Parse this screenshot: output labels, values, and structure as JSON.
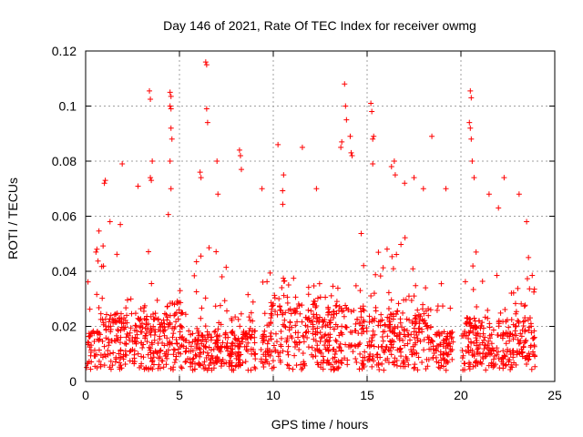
{
  "chart_data": {
    "type": "scatter",
    "title": "Day 146 of 2021, Rate Of TEC Index for receiver owmg",
    "xlabel": "GPS time / hours",
    "ylabel": "ROTI / TECUs",
    "xlim": [
      0,
      25
    ],
    "ylim": [
      0,
      0.12
    ],
    "x_ticks": [
      0,
      5,
      10,
      15,
      20,
      25
    ],
    "y_ticks": [
      0,
      0.02,
      0.04,
      0.06,
      0.08,
      0.1,
      0.12
    ],
    "x_tick_labels": [
      "0",
      "5",
      "10",
      "15",
      "20",
      "25"
    ],
    "y_tick_labels": [
      "0",
      "0.02",
      "0.04",
      "0.06",
      "0.08",
      "0.1",
      "0.12"
    ],
    "grid": true,
    "marker": "+",
    "series_color": "#ff0000",
    "gaps_hours": [
      [
        9.05,
        9.35
      ],
      [
        19.6,
        20.05
      ]
    ],
    "notable_points": [
      [
        0.55,
        0.047
      ],
      [
        0.6,
        0.048
      ],
      [
        1.0,
        0.072
      ],
      [
        1.05,
        0.073
      ],
      [
        1.3,
        0.058
      ],
      [
        1.85,
        0.057
      ],
      [
        1.95,
        0.079
      ],
      [
        3.4,
        0.1055
      ],
      [
        3.45,
        0.1025
      ],
      [
        3.45,
        0.074
      ],
      [
        3.5,
        0.073
      ],
      [
        3.55,
        0.08
      ],
      [
        4.5,
        0.105
      ],
      [
        4.55,
        0.1035
      ],
      [
        4.5,
        0.1
      ],
      [
        4.55,
        0.099
      ],
      [
        4.55,
        0.092
      ],
      [
        4.6,
        0.088
      ],
      [
        4.5,
        0.08
      ],
      [
        4.55,
        0.07
      ],
      [
        6.4,
        0.116
      ],
      [
        6.45,
        0.115
      ],
      [
        6.45,
        0.099
      ],
      [
        6.5,
        0.094
      ],
      [
        6.1,
        0.076
      ],
      [
        6.15,
        0.074
      ],
      [
        7.0,
        0.08
      ],
      [
        7.05,
        0.068
      ],
      [
        8.2,
        0.084
      ],
      [
        8.25,
        0.082
      ],
      [
        8.3,
        0.077
      ],
      [
        9.4,
        0.07
      ],
      [
        10.25,
        0.086
      ],
      [
        10.55,
        0.075
      ],
      [
        11.55,
        0.085
      ],
      [
        12.3,
        0.07
      ],
      [
        13.6,
        0.085
      ],
      [
        13.65,
        0.087
      ],
      [
        13.8,
        0.108
      ],
      [
        13.85,
        0.1
      ],
      [
        13.9,
        0.095
      ],
      [
        14.1,
        0.089
      ],
      [
        14.15,
        0.083
      ],
      [
        14.2,
        0.082
      ],
      [
        15.2,
        0.101
      ],
      [
        15.25,
        0.098
      ],
      [
        15.3,
        0.088
      ],
      [
        15.35,
        0.089
      ],
      [
        15.3,
        0.079
      ],
      [
        16.3,
        0.078
      ],
      [
        16.45,
        0.08
      ],
      [
        16.5,
        0.075
      ],
      [
        17.0,
        0.072
      ],
      [
        17.5,
        0.074
      ],
      [
        18.0,
        0.07
      ],
      [
        18.45,
        0.089
      ],
      [
        19.2,
        0.07
      ],
      [
        20.5,
        0.1055
      ],
      [
        20.55,
        0.103
      ],
      [
        20.45,
        0.094
      ],
      [
        20.5,
        0.092
      ],
      [
        20.55,
        0.088
      ],
      [
        20.6,
        0.08
      ],
      [
        20.7,
        0.074
      ],
      [
        21.5,
        0.068
      ],
      [
        22.3,
        0.074
      ],
      [
        22.0,
        0.063
      ],
      [
        23.1,
        0.068
      ],
      [
        23.5,
        0.058
      ],
      [
        23.6,
        0.045
      ]
    ]
  }
}
